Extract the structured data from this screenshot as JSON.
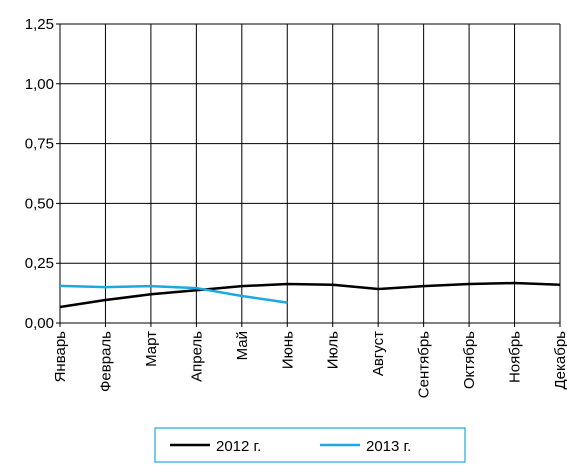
{
  "chart_data": {
    "type": "line",
    "categories": [
      "Январь",
      "Февраль",
      "Март",
      "Апрель",
      "Май",
      "Июнь",
      "Июль",
      "Август",
      "Сентябрь",
      "Октябрь",
      "Ноябрь",
      "Декабрь"
    ],
    "series": [
      {
        "name": "2012 г.",
        "color": "#000000",
        "values": [
          0.067,
          0.096,
          0.12,
          0.137,
          0.154,
          0.163,
          0.16,
          0.142,
          0.154,
          0.163,
          0.167,
          0.16
        ]
      },
      {
        "name": "2013 г.",
        "color": "#1aa9e0",
        "values": [
          0.155,
          0.15,
          0.154,
          0.146,
          0.113,
          0.085,
          null,
          null,
          null,
          null,
          null,
          null
        ]
      }
    ],
    "ylim": [
      0,
      1.25
    ],
    "yticks": [
      {
        "value": 0,
        "label": "0,00"
      },
      {
        "value": 0.25,
        "label": "0,25"
      },
      {
        "value": 0.5,
        "label": "0,50"
      },
      {
        "value": 0.75,
        "label": "0,75"
      },
      {
        "value": 1,
        "label": "1,00"
      },
      {
        "value": 1.25,
        "label": "1,25"
      }
    ],
    "grid": true
  }
}
